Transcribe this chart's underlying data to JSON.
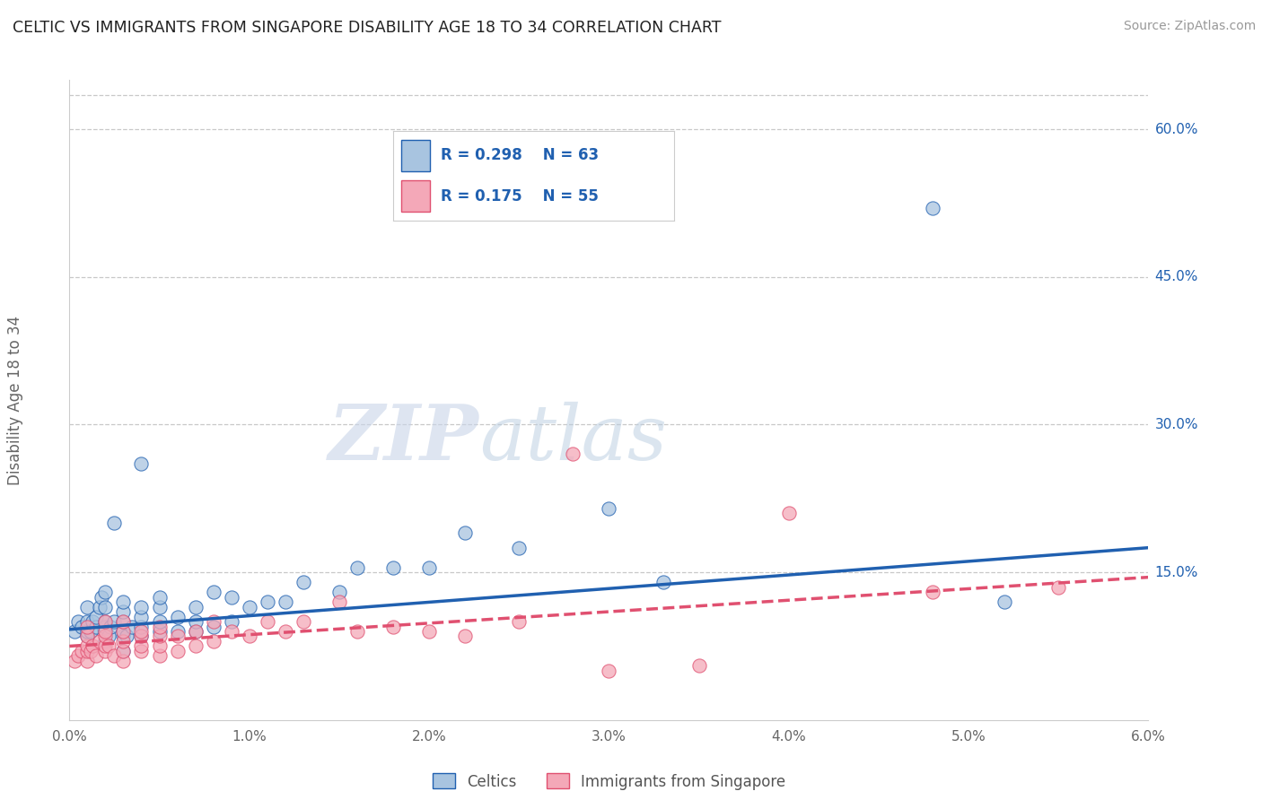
{
  "title": "CELTIC VS IMMIGRANTS FROM SINGAPORE DISABILITY AGE 18 TO 34 CORRELATION CHART",
  "source": "Source: ZipAtlas.com",
  "ylabel": "Disability Age 18 to 34",
  "xlim": [
    0.0,
    0.06
  ],
  "ylim": [
    0.0,
    0.65
  ],
  "xtick_labels": [
    "0.0%",
    "1.0%",
    "2.0%",
    "3.0%",
    "4.0%",
    "5.0%",
    "6.0%"
  ],
  "xtick_vals": [
    0.0,
    0.01,
    0.02,
    0.03,
    0.04,
    0.05,
    0.06
  ],
  "ytick_labels": [
    "60.0%",
    "45.0%",
    "30.0%",
    "15.0%"
  ],
  "ytick_vals": [
    0.6,
    0.45,
    0.3,
    0.15
  ],
  "legend1_label": "Celtics",
  "legend2_label": "Immigrants from Singapore",
  "R1": 0.298,
  "N1": 63,
  "R2": 0.175,
  "N2": 55,
  "color1": "#a8c4e0",
  "color2": "#f4a8b8",
  "line_color1": "#2060b0",
  "line_color2": "#e05070",
  "scatter1_x": [
    0.0003,
    0.0005,
    0.0007,
    0.001,
    0.001,
    0.001,
    0.001,
    0.0012,
    0.0013,
    0.0015,
    0.0015,
    0.0017,
    0.0018,
    0.002,
    0.002,
    0.002,
    0.002,
    0.002,
    0.002,
    0.0022,
    0.0023,
    0.0025,
    0.0025,
    0.003,
    0.003,
    0.003,
    0.003,
    0.003,
    0.003,
    0.0032,
    0.0035,
    0.004,
    0.004,
    0.004,
    0.004,
    0.004,
    0.005,
    0.005,
    0.005,
    0.005,
    0.006,
    0.006,
    0.007,
    0.007,
    0.007,
    0.008,
    0.008,
    0.009,
    0.009,
    0.01,
    0.011,
    0.012,
    0.013,
    0.015,
    0.016,
    0.018,
    0.02,
    0.022,
    0.025,
    0.03,
    0.033,
    0.048,
    0.052
  ],
  "scatter1_y": [
    0.09,
    0.1,
    0.095,
    0.085,
    0.09,
    0.1,
    0.115,
    0.09,
    0.1,
    0.095,
    0.105,
    0.115,
    0.125,
    0.08,
    0.09,
    0.095,
    0.1,
    0.115,
    0.13,
    0.085,
    0.095,
    0.1,
    0.2,
    0.07,
    0.085,
    0.09,
    0.1,
    0.11,
    0.12,
    0.085,
    0.095,
    0.085,
    0.095,
    0.105,
    0.115,
    0.26,
    0.09,
    0.1,
    0.115,
    0.125,
    0.09,
    0.105,
    0.09,
    0.1,
    0.115,
    0.095,
    0.13,
    0.1,
    0.125,
    0.115,
    0.12,
    0.12,
    0.14,
    0.13,
    0.155,
    0.155,
    0.155,
    0.19,
    0.175,
    0.215,
    0.14,
    0.52,
    0.12
  ],
  "scatter2_x": [
    0.0003,
    0.0005,
    0.0007,
    0.001,
    0.001,
    0.001,
    0.001,
    0.001,
    0.0012,
    0.0013,
    0.0015,
    0.0017,
    0.002,
    0.002,
    0.002,
    0.002,
    0.002,
    0.0022,
    0.0025,
    0.003,
    0.003,
    0.003,
    0.003,
    0.003,
    0.004,
    0.004,
    0.004,
    0.004,
    0.005,
    0.005,
    0.005,
    0.005,
    0.006,
    0.006,
    0.007,
    0.007,
    0.008,
    0.008,
    0.009,
    0.01,
    0.011,
    0.012,
    0.013,
    0.015,
    0.016,
    0.018,
    0.02,
    0.022,
    0.025,
    0.028,
    0.03,
    0.035,
    0.04,
    0.048,
    0.055
  ],
  "scatter2_y": [
    0.06,
    0.065,
    0.07,
    0.06,
    0.07,
    0.075,
    0.085,
    0.095,
    0.07,
    0.075,
    0.065,
    0.08,
    0.07,
    0.075,
    0.085,
    0.09,
    0.1,
    0.075,
    0.065,
    0.06,
    0.07,
    0.08,
    0.09,
    0.1,
    0.07,
    0.075,
    0.085,
    0.09,
    0.065,
    0.075,
    0.085,
    0.095,
    0.07,
    0.085,
    0.075,
    0.09,
    0.08,
    0.1,
    0.09,
    0.085,
    0.1,
    0.09,
    0.1,
    0.12,
    0.09,
    0.095,
    0.09,
    0.085,
    0.1,
    0.27,
    0.05,
    0.055,
    0.21,
    0.13,
    0.135
  ],
  "trendline1_x": [
    0.0,
    0.06
  ],
  "trendline1_y": [
    0.092,
    0.175
  ],
  "trendline2_x": [
    0.0,
    0.06
  ],
  "trendline2_y": [
    0.075,
    0.145
  ],
  "watermark_zip": "ZIP",
  "watermark_atlas": "atlas",
  "background_color": "#ffffff",
  "grid_color": "#c8c8c8"
}
